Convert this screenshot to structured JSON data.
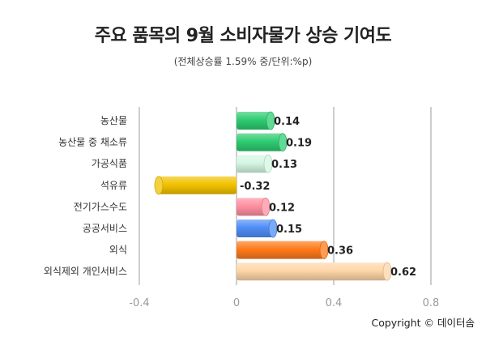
{
  "chart_data": {
    "type": "bar",
    "orientation": "horizontal",
    "title": "주요 품목의 9월 소비자물가 상승 기여도",
    "subtitle": "(전체상승률 1.59% 중/단위:%p)",
    "categories": [
      "농산물",
      "농산물 중 채소류",
      "가공식품",
      "석유류",
      "전기가스수도",
      "공공서비스",
      "외식",
      "외식제외 개인서비스"
    ],
    "values": [
      0.14,
      0.19,
      0.13,
      -0.32,
      0.12,
      0.15,
      0.36,
      0.62
    ],
    "value_labels": [
      "0.14",
      "0.19",
      "0.13",
      "-0.32",
      "0.12",
      "0.15",
      "0.36",
      "0.62"
    ],
    "colors": [
      "#2ecc71",
      "#2ecc71",
      "#d4f7e2",
      "#f2c200",
      "#ff8fa0",
      "#4f8ef7",
      "#ff7a1a",
      "#ffd6a8"
    ],
    "xlim": [
      -0.4,
      0.8
    ],
    "xticks": [
      -0.4,
      0,
      0.4,
      0.8
    ],
    "xtick_labels": [
      "-0.4",
      "0",
      "0.4",
      "0.8"
    ],
    "grid": true
  },
  "footer": {
    "copyright": "Copyright © 데이터솜"
  }
}
